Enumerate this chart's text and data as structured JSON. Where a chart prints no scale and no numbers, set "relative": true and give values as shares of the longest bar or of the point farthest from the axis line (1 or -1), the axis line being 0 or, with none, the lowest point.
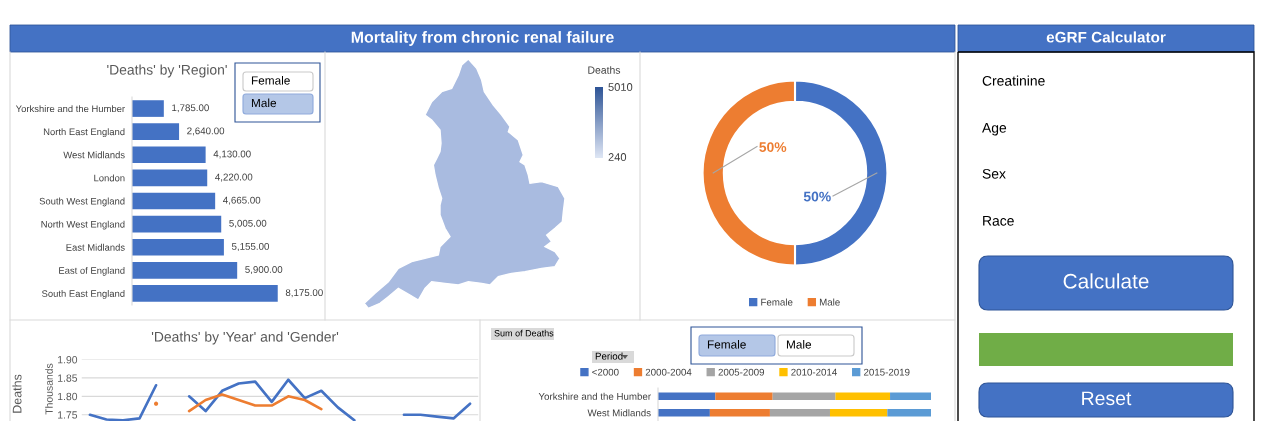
{
  "chart_data": [
    {
      "type": "other",
      "title": "Mortality from chronic renal failure"
    },
    {
      "type": "bar",
      "orientation": "horizontal",
      "title": "'Deaths' by 'Region'",
      "categories": [
        "Yorkshire and the Humber",
        "North East England",
        "West Midlands",
        "London",
        "South West England",
        "North West England",
        "East Midlands",
        "East of England",
        "South East England"
      ],
      "values": [
        1785,
        2640,
        4130,
        4220,
        4665,
        5005,
        5155,
        5900,
        8175
      ],
      "color": "#4472c4",
      "value_labels": [
        "1,785.00",
        "2,640.00",
        "4,130.00",
        "4,220.00",
        "4,665.00",
        "5,005.00",
        "5,155.00",
        "5,900.00",
        "8,175.00"
      ],
      "tick_labels": "y",
      "annotations": [
        "Female",
        "Male"
      ]
    },
    {
      "type": "other",
      "clabel": "Deaths",
      "annotations": [
        "5010",
        "240"
      ]
    },
    {
      "type": "donut",
      "categories": [
        "Female",
        "Male"
      ],
      "values": [
        50,
        50
      ],
      "colors": [
        "#4472c4",
        "#ed7d31"
      ],
      "value_labels": [
        "50%",
        "50%"
      ],
      "legend": "bottom"
    },
    {
      "type": "line",
      "title": "'Deaths' by 'Year' and 'Gender'",
      "ylabel": "Deaths",
      "annotations": [
        "Thousands"
      ],
      "categories": [
        null,
        null,
        null,
        null,
        null,
        null,
        null,
        null,
        null,
        null,
        null,
        null,
        null,
        null,
        null,
        null,
        null,
        null,
        null,
        null,
        null,
        null,
        null,
        null
      ],
      "series": [
        {
          "color": "#4472c4",
          "values": [
            1.75,
            1.737,
            1.735,
            1.74,
            1.83,
            null,
            1.8,
            1.76,
            1.815,
            1.835,
            1.84,
            1.785,
            1.845,
            1.795,
            1.815,
            1.77,
            1.735,
            null,
            null,
            1.75,
            1.75,
            1.745,
            1.74,
            1.78
          ]
        },
        {
          "color": "#ed7d31",
          "values": [
            null,
            null,
            null,
            null,
            1.78,
            null,
            1.76,
            1.79,
            1.805,
            1.79,
            1.775,
            1.775,
            1.8,
            1.79,
            1.765,
            null,
            null,
            null,
            null,
            null,
            null,
            null,
            null,
            null
          ]
        }
      ],
      "ylim": [
        1.733,
        1.9
      ],
      "yticks": [
        {
          "value": 1.75,
          "label": "1.75"
        },
        {
          "value": 1.8,
          "label": "1.80"
        },
        {
          "value": 1.85,
          "label": "1.85"
        },
        {
          "value": 1.9,
          "label": "1.90"
        }
      ],
      "grid": "y",
      "tick_labels": "y"
    },
    {
      "type": "bar",
      "orientation": "horizontal",
      "stacked": true,
      "relative": true,
      "categories": [
        "Yorkshire and the Humber",
        "West Midlands"
      ],
      "series": [
        {
          "name": "<2000",
          "color": "#4472c4",
          "values": [
            0.21,
            0.19
          ]
        },
        {
          "name": "2000-2004",
          "color": "#ed7d31",
          "values": [
            0.21,
            0.22
          ]
        },
        {
          "name": "2005-2009",
          "color": "#a5a5a5",
          "values": [
            0.23,
            0.22
          ]
        },
        {
          "name": "2010-2014",
          "color": "#ffc000",
          "values": [
            0.2,
            0.21
          ]
        },
        {
          "name": "2015-2019",
          "color": "#5b9bd5",
          "values": [
            0.15,
            0.16
          ]
        }
      ],
      "legend": "top",
      "tick_labels": "y",
      "annotations": [
        "Sum of Deaths",
        "Period",
        "Female",
        "Male"
      ]
    },
    {
      "type": "other",
      "title": "eGRF Calculator",
      "annotations": [
        "Creatinine",
        "Age",
        "Sex",
        "Race",
        "Calculate",
        "Reset"
      ]
    }
  ]
}
